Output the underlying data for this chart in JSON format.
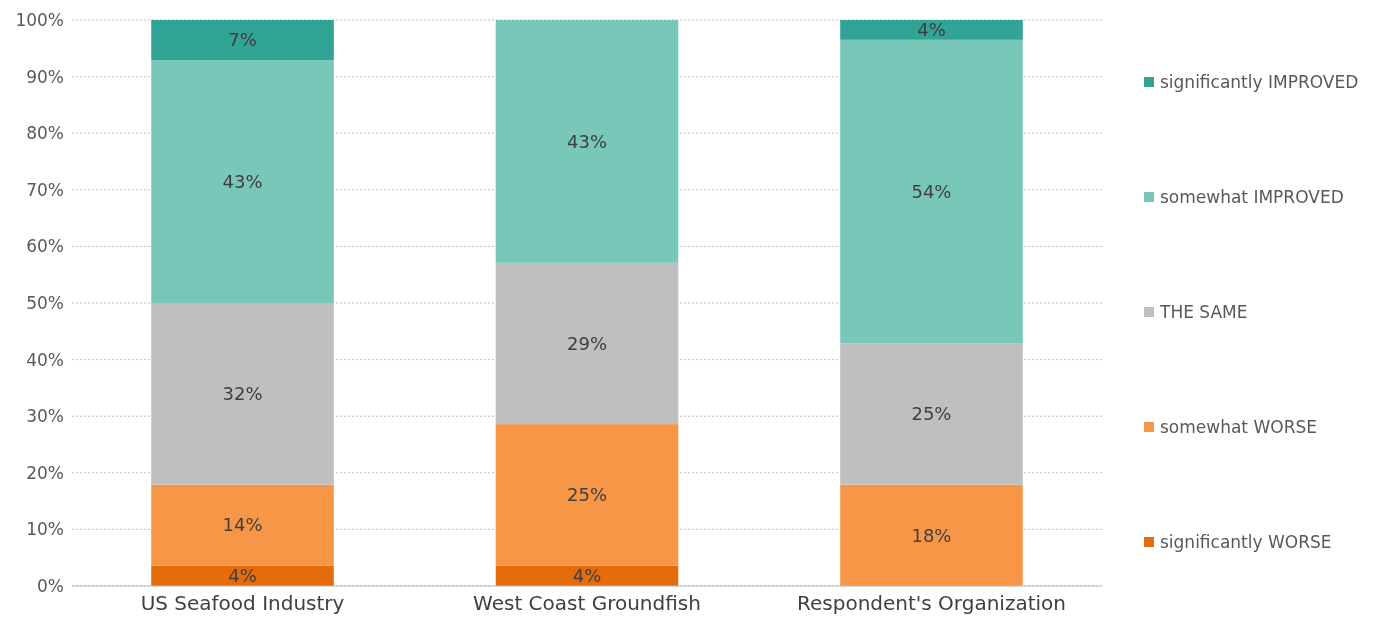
{
  "chart_data": {
    "type": "bar",
    "stacked": true,
    "categories": [
      "US Seafood Industry",
      "West Coast Groundfish",
      "Respondent's Organization"
    ],
    "series": [
      {
        "name": "significantly WORSE",
        "color": "#e46c0a",
        "values": [
          3.6,
          3.6,
          null
        ],
        "value_labels": [
          "4%",
          "4%",
          null
        ]
      },
      {
        "name": "somewhat WORSE",
        "color": "#f79646",
        "values": [
          14.3,
          25,
          17.9
        ],
        "value_labels": [
          "14%",
          "25%",
          "18%"
        ]
      },
      {
        "name": "THE SAME",
        "color": "#bfbfbf",
        "values": [
          32.1,
          28.5,
          25
        ],
        "value_labels": [
          "32%",
          "29%",
          "25%"
        ]
      },
      {
        "name": "somewhat IMPROVED",
        "color": "#79c7b9",
        "values": [
          42.9,
          42.9,
          53.6
        ],
        "value_labels": [
          "43%",
          "43%",
          "54%"
        ]
      },
      {
        "name": "significantly IMPROVED",
        "color": "#31a496",
        "values": [
          7.1,
          null,
          3.5
        ],
        "value_labels": [
          "7%",
          null,
          "4%"
        ]
      }
    ],
    "ylim": [
      0,
      100
    ],
    "yticks": [
      {
        "value": 0,
        "label": "0%"
      },
      {
        "value": 10,
        "label": "10%"
      },
      {
        "value": 20,
        "label": "20%"
      },
      {
        "value": 30,
        "label": "30%"
      },
      {
        "value": 40,
        "label": "40%"
      },
      {
        "value": 50,
        "label": "50%"
      },
      {
        "value": 60,
        "label": "60%"
      },
      {
        "value": 70,
        "label": "70%"
      },
      {
        "value": 80,
        "label": "80%"
      },
      {
        "value": 90,
        "label": "90%"
      },
      {
        "value": 100,
        "label": "100%"
      }
    ],
    "grid": "y",
    "legend": "right"
  }
}
